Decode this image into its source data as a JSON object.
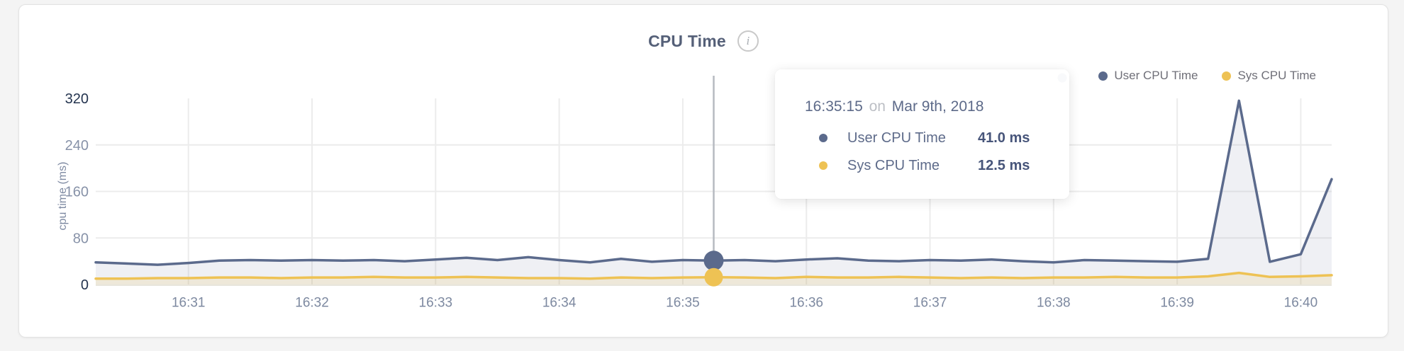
{
  "card": {
    "title": "CPU Time",
    "info_icon": "i"
  },
  "legend": [
    {
      "label": "User CPU Time",
      "color": "#5b6a8c"
    },
    {
      "label": "Sys CPU Time",
      "color": "#eec254"
    }
  ],
  "tooltip": {
    "time": "16:35:15",
    "conjunction": "on",
    "date": "Mar 9th, 2018",
    "rows": [
      {
        "label": "User CPU Time",
        "value": "41.0 ms",
        "color": "#5b6a8c"
      },
      {
        "label": "Sys CPU Time",
        "value": "12.5 ms",
        "color": "#eec254"
      }
    ]
  },
  "chart_data": {
    "type": "area",
    "title": "CPU Time",
    "xlabel": "",
    "ylabel": "cpu time (ms)",
    "ylim": [
      0,
      320
    ],
    "y_ticks": [
      0,
      80,
      160,
      240,
      320
    ],
    "x_ticks": [
      "16:31",
      "16:32",
      "16:33",
      "16:34",
      "16:35",
      "16:36",
      "16:37",
      "16:38",
      "16:39",
      "16:40"
    ],
    "x_tick_indices": [
      3,
      7,
      11,
      15,
      19,
      23,
      27,
      31,
      35,
      39
    ],
    "x_start": "16:30:15",
    "x_interval_seconds": 15,
    "grid": true,
    "legend_position": "top-right",
    "hover": {
      "index": 20,
      "time": "16:35:15",
      "date": "Mar 9th, 2018"
    },
    "series": [
      {
        "name": "User CPU Time",
        "color": "#5b6a8c",
        "fill": "rgba(96,110,143,0.10)",
        "values": [
          38,
          36,
          34,
          37,
          41,
          42,
          41,
          42,
          41,
          42,
          40,
          43,
          46,
          42,
          47,
          42,
          38,
          44,
          39,
          42,
          41,
          42,
          40,
          43,
          45,
          41,
          40,
          42,
          41,
          43,
          40,
          38,
          42,
          41,
          40,
          39,
          44,
          316,
          39,
          52,
          181
        ]
      },
      {
        "name": "Sys CPU Time",
        "color": "#eec254",
        "fill": "rgba(238,194,84,0.17)",
        "values": [
          10,
          10,
          11,
          11,
          12,
          12,
          11,
          12,
          12,
          13,
          12,
          12,
          13,
          12,
          11,
          11,
          10,
          12,
          11,
          12,
          12.5,
          12,
          11,
          13,
          12,
          12,
          13,
          12,
          11,
          12,
          11,
          12,
          12,
          13,
          12,
          12,
          14,
          20,
          13,
          14,
          16
        ]
      }
    ],
    "colors": {
      "grid": "#ececec",
      "y_tick_minor": "#8792a8",
      "y_tick_major": "#24344f",
      "x_tick": "#7d89a0",
      "hover_line": "#b6bac1",
      "baseline": "#e8e5dc"
    }
  }
}
